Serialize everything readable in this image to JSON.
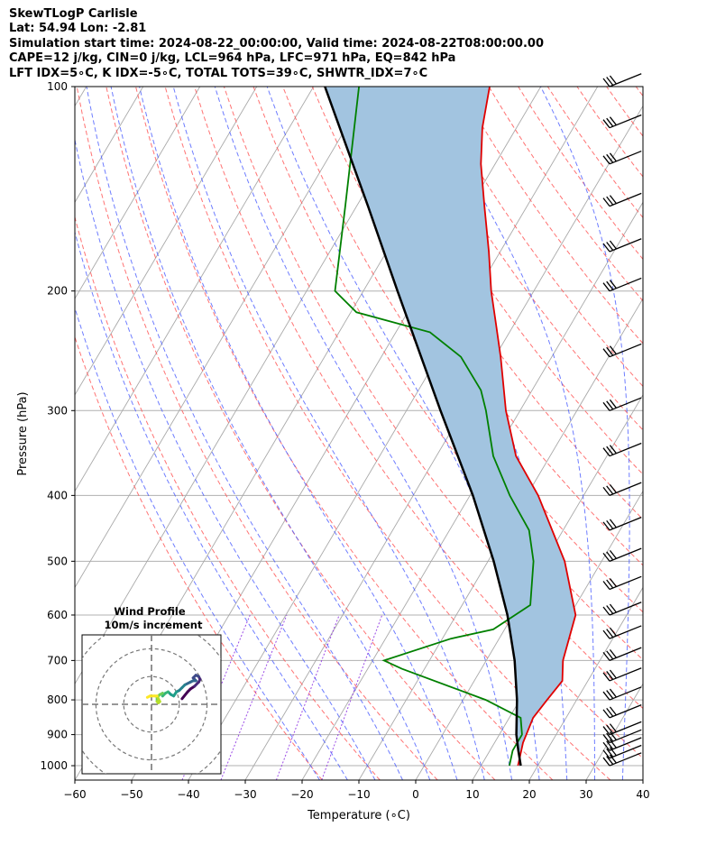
{
  "header": {
    "title": "SkewTLogP Carlisle",
    "location": "Lat: 54.94   Lon: -2.81",
    "times": "Simulation start time: 2024-08-22_00:00:00, Valid time: 2024-08-22T08:00:00.00",
    "indices1": "CAPE=12 j/kg, CIN=0 j/kg, LCL=964 hPa, LFC=971 hPa, EQ=842 hPa",
    "indices2": "LFT IDX=5∘C, K IDX=-5∘C, TOTAL TOTS=39∘C, SHWTR_IDX=7∘C"
  },
  "chart_data": {
    "type": "skewt-logp",
    "xlabel": "Temperature (∘C)",
    "ylabel": "Pressure (hPa)",
    "xlim": [
      -60,
      40
    ],
    "ylim": [
      1050,
      100
    ],
    "y_scale": "log",
    "x_ticks": [
      "−60",
      "−50",
      "−40",
      "−30",
      "−20",
      "−10",
      "0",
      "10",
      "20",
      "30",
      "40"
    ],
    "y_ticks": [
      "100",
      "200",
      "300",
      "400",
      "500",
      "600",
      "700",
      "800",
      "900",
      "1000"
    ],
    "grid": true,
    "colors": {
      "temperature": "#e00000",
      "dewpoint": "#008000",
      "parcel": "#000000",
      "cape_fill": "#a2c4e0",
      "dry_adiabat": "#ff5a5a",
      "moist_adiabat": "#4a5cff",
      "mixing_ratio": "#8a2be2",
      "isotherm": "#a9a9a9"
    },
    "temperature": [
      {
        "p": 1000,
        "t": 16.5
      },
      {
        "p": 925,
        "t": 15.0
      },
      {
        "p": 850,
        "t": 14.2
      },
      {
        "p": 800,
        "t": 14.8
      },
      {
        "p": 750,
        "t": 15.5
      },
      {
        "p": 700,
        "t": 13.5
      },
      {
        "p": 600,
        "t": 11.0
      },
      {
        "p": 500,
        "t": 3.5
      },
      {
        "p": 400,
        "t": -8.0
      },
      {
        "p": 350,
        "t": -16.0
      },
      {
        "p": 300,
        "t": -22.5
      },
      {
        "p": 250,
        "t": -29.0
      },
      {
        "p": 225,
        "t": -33.0
      },
      {
        "p": 200,
        "t": -37.5
      },
      {
        "p": 175,
        "t": -42.0
      },
      {
        "p": 150,
        "t": -47.5
      },
      {
        "p": 130,
        "t": -52.5
      },
      {
        "p": 115,
        "t": -56.0
      },
      {
        "p": 100,
        "t": -59.0
      }
    ],
    "dewpoint": [
      {
        "p": 1000,
        "t": 15.0
      },
      {
        "p": 950,
        "t": 14.0
      },
      {
        "p": 900,
        "t": 14.0
      },
      {
        "p": 850,
        "t": 12.0
      },
      {
        "p": 800,
        "t": 4.0
      },
      {
        "p": 720,
        "t": -14.0
      },
      {
        "p": 700,
        "t": -18.0
      },
      {
        "p": 650,
        "t": -8.5
      },
      {
        "p": 630,
        "t": -2.0
      },
      {
        "p": 580,
        "t": 2.0
      },
      {
        "p": 500,
        "t": -2.0
      },
      {
        "p": 450,
        "t": -6.0
      },
      {
        "p": 400,
        "t": -13.0
      },
      {
        "p": 350,
        "t": -20.0
      },
      {
        "p": 300,
        "t": -26.0
      },
      {
        "p": 280,
        "t": -29.0
      },
      {
        "p": 250,
        "t": -36.0
      },
      {
        "p": 230,
        "t": -44.0
      },
      {
        "p": 215,
        "t": -59.0
      },
      {
        "p": 200,
        "t": -65.0
      },
      {
        "p": 150,
        "t": -72.0
      },
      {
        "p": 100,
        "t": -82.0
      }
    ],
    "parcel": [
      {
        "p": 1000,
        "t": 17.0
      },
      {
        "p": 950,
        "t": 15.0
      },
      {
        "p": 900,
        "t": 13.0
      },
      {
        "p": 800,
        "t": 9.5
      },
      {
        "p": 700,
        "t": 5.0
      },
      {
        "p": 600,
        "t": -1.0
      },
      {
        "p": 500,
        "t": -9.0
      },
      {
        "p": 400,
        "t": -19.5
      },
      {
        "p": 300,
        "t": -34.0
      },
      {
        "p": 250,
        "t": -43.0
      },
      {
        "p": 200,
        "t": -54.0
      },
      {
        "p": 150,
        "t": -68.0
      },
      {
        "p": 100,
        "t": -88.0
      }
    ],
    "wind_barbs": [
      {
        "p": 1000,
        "speed_kt": 25,
        "dir": 250
      },
      {
        "p": 975,
        "speed_kt": 25,
        "dir": 250
      },
      {
        "p": 950,
        "speed_kt": 30,
        "dir": 255
      },
      {
        "p": 925,
        "speed_kt": 30,
        "dir": 255
      },
      {
        "p": 900,
        "speed_kt": 30,
        "dir": 260
      },
      {
        "p": 850,
        "speed_kt": 30,
        "dir": 245
      },
      {
        "p": 800,
        "speed_kt": 30,
        "dir": 240
      },
      {
        "p": 750,
        "speed_kt": 30,
        "dir": 240
      },
      {
        "p": 700,
        "speed_kt": 30,
        "dir": 240
      },
      {
        "p": 650,
        "speed_kt": 30,
        "dir": 240
      },
      {
        "p": 600,
        "speed_kt": 30,
        "dir": 240
      },
      {
        "p": 550,
        "speed_kt": 30,
        "dir": 240
      },
      {
        "p": 500,
        "speed_kt": 30,
        "dir": 240
      },
      {
        "p": 450,
        "speed_kt": 30,
        "dir": 240
      },
      {
        "p": 400,
        "speed_kt": 30,
        "dir": 240
      },
      {
        "p": 350,
        "speed_kt": 30,
        "dir": 240
      },
      {
        "p": 300,
        "speed_kt": 30,
        "dir": 240
      },
      {
        "p": 250,
        "speed_kt": 30,
        "dir": 240
      },
      {
        "p": 200,
        "speed_kt": 30,
        "dir": 240
      },
      {
        "p": 175,
        "speed_kt": 30,
        "dir": 240
      },
      {
        "p": 150,
        "speed_kt": 30,
        "dir": 240
      },
      {
        "p": 130,
        "speed_kt": 30,
        "dir": 240
      },
      {
        "p": 115,
        "speed_kt": 30,
        "dir": 240
      },
      {
        "p": 100,
        "speed_kt": 30,
        "dir": 240
      }
    ],
    "hodograph": {
      "title": "Wind Profile",
      "subtitle": "10m/s increment",
      "rings_ms": [
        10,
        20,
        30
      ],
      "range_ms": 25,
      "points": [
        {
          "u": 11.0,
          "v": 2.0
        },
        {
          "u": 13.0,
          "v": 4.5
        },
        {
          "u": 14.0,
          "v": 5.5
        },
        {
          "u": 15.5,
          "v": 6.5
        },
        {
          "u": 17.0,
          "v": 8.0
        },
        {
          "u": 17.5,
          "v": 9.0
        },
        {
          "u": 17.0,
          "v": 10.0
        },
        {
          "u": 16.0,
          "v": 10.5
        },
        {
          "u": 15.0,
          "v": 9.5
        },
        {
          "u": 16.0,
          "v": 8.5
        },
        {
          "u": 15.0,
          "v": 8.5
        },
        {
          "u": 14.0,
          "v": 8.0
        },
        {
          "u": 12.0,
          "v": 7.0
        },
        {
          "u": 11.0,
          "v": 6.0
        },
        {
          "u": 10.0,
          "v": 5.0
        },
        {
          "u": 9.0,
          "v": 4.5
        },
        {
          "u": 8.0,
          "v": 3.0
        },
        {
          "u": 7.0,
          "v": 3.5
        },
        {
          "u": 6.0,
          "v": 4.5
        },
        {
          "u": 5.0,
          "v": 4.0
        },
        {
          "u": 4.0,
          "v": 3.0
        },
        {
          "u": 4.0,
          "v": 4.0
        },
        {
          "u": 3.0,
          "v": 3.5
        },
        {
          "u": 2.0,
          "v": 2.5
        },
        {
          "u": 2.0,
          "v": 1.0
        },
        {
          "u": 2.5,
          "v": 0.5
        },
        {
          "u": 3.0,
          "v": 1.0
        },
        {
          "u": 2.0,
          "v": 3.0
        },
        {
          "u": 1.0,
          "v": 3.0
        },
        {
          "u": -0.5,
          "v": 3.0
        },
        {
          "u": -1.5,
          "v": 2.5
        }
      ]
    }
  }
}
